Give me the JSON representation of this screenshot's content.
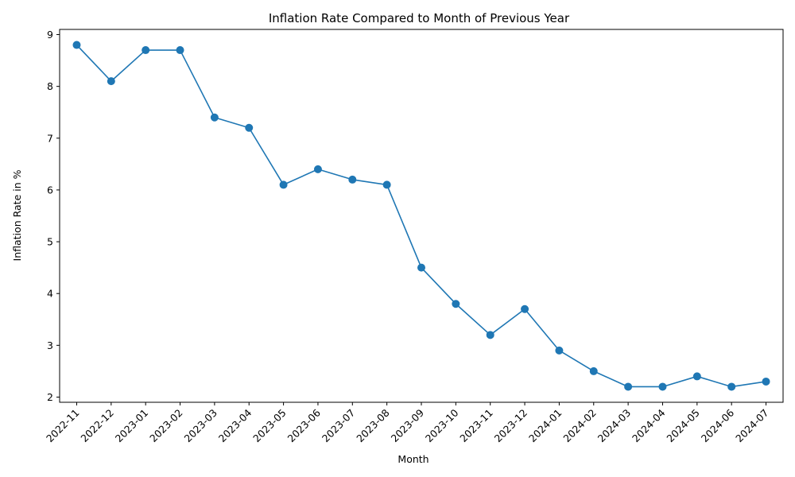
{
  "chart_data": {
    "type": "line",
    "title": "Inflation Rate Compared to Month of Previous Year",
    "xlabel": "Month",
    "ylabel": "Inflation Rate in %",
    "categories": [
      "2022-11",
      "2022-12",
      "2023-01",
      "2023-02",
      "2023-03",
      "2023-04",
      "2023-05",
      "2023-06",
      "2023-07",
      "2023-08",
      "2023-09",
      "2023-10",
      "2023-11",
      "2023-12",
      "2024-01",
      "2024-02",
      "2024-03",
      "2024-04",
      "2024-05",
      "2024-06",
      "2024-07"
    ],
    "values": [
      8.8,
      8.1,
      8.7,
      8.7,
      7.4,
      7.2,
      6.1,
      6.4,
      6.2,
      6.1,
      4.5,
      3.8,
      3.2,
      3.7,
      2.9,
      2.5,
      2.2,
      2.2,
      2.4,
      2.2,
      2.3
    ],
    "yticks": [
      2,
      3,
      4,
      5,
      6,
      7,
      8,
      9
    ],
    "ylim": [
      1.9,
      9.1
    ],
    "grid": false,
    "color": "#1f77b4",
    "marker": "circle"
  }
}
